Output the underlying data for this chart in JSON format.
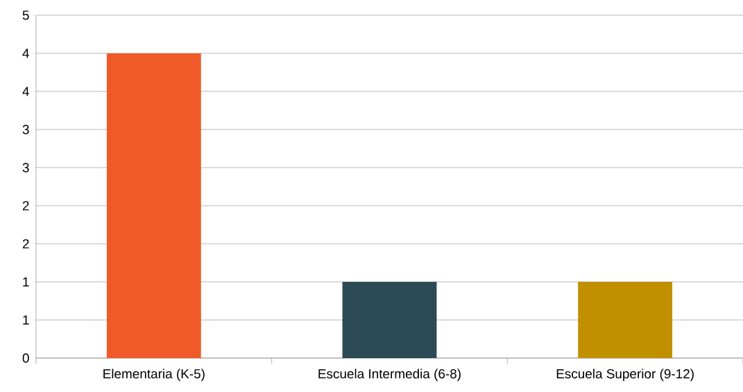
{
  "chart_data": {
    "type": "bar",
    "categories": [
      "Elementaria (K-5)",
      "Escuela Intermedia (6-8)",
      "Escuela Superior (9-12)"
    ],
    "values": [
      4,
      1,
      1
    ],
    "colors": [
      "#f05a28",
      "#2b4a55",
      "#c09000"
    ],
    "ylim": [
      0,
      4.5
    ],
    "yticks": [
      0,
      {
        "value": 0.5,
        "label": "1"
      },
      1,
      {
        "value": 1.5,
        "label": "2"
      },
      2,
      {
        "value": 2.5,
        "label": "3"
      },
      3,
      {
        "value": 3.5,
        "label": "4"
      },
      4,
      {
        "value": 4.5,
        "label": "5"
      }
    ],
    "grid": "y"
  }
}
